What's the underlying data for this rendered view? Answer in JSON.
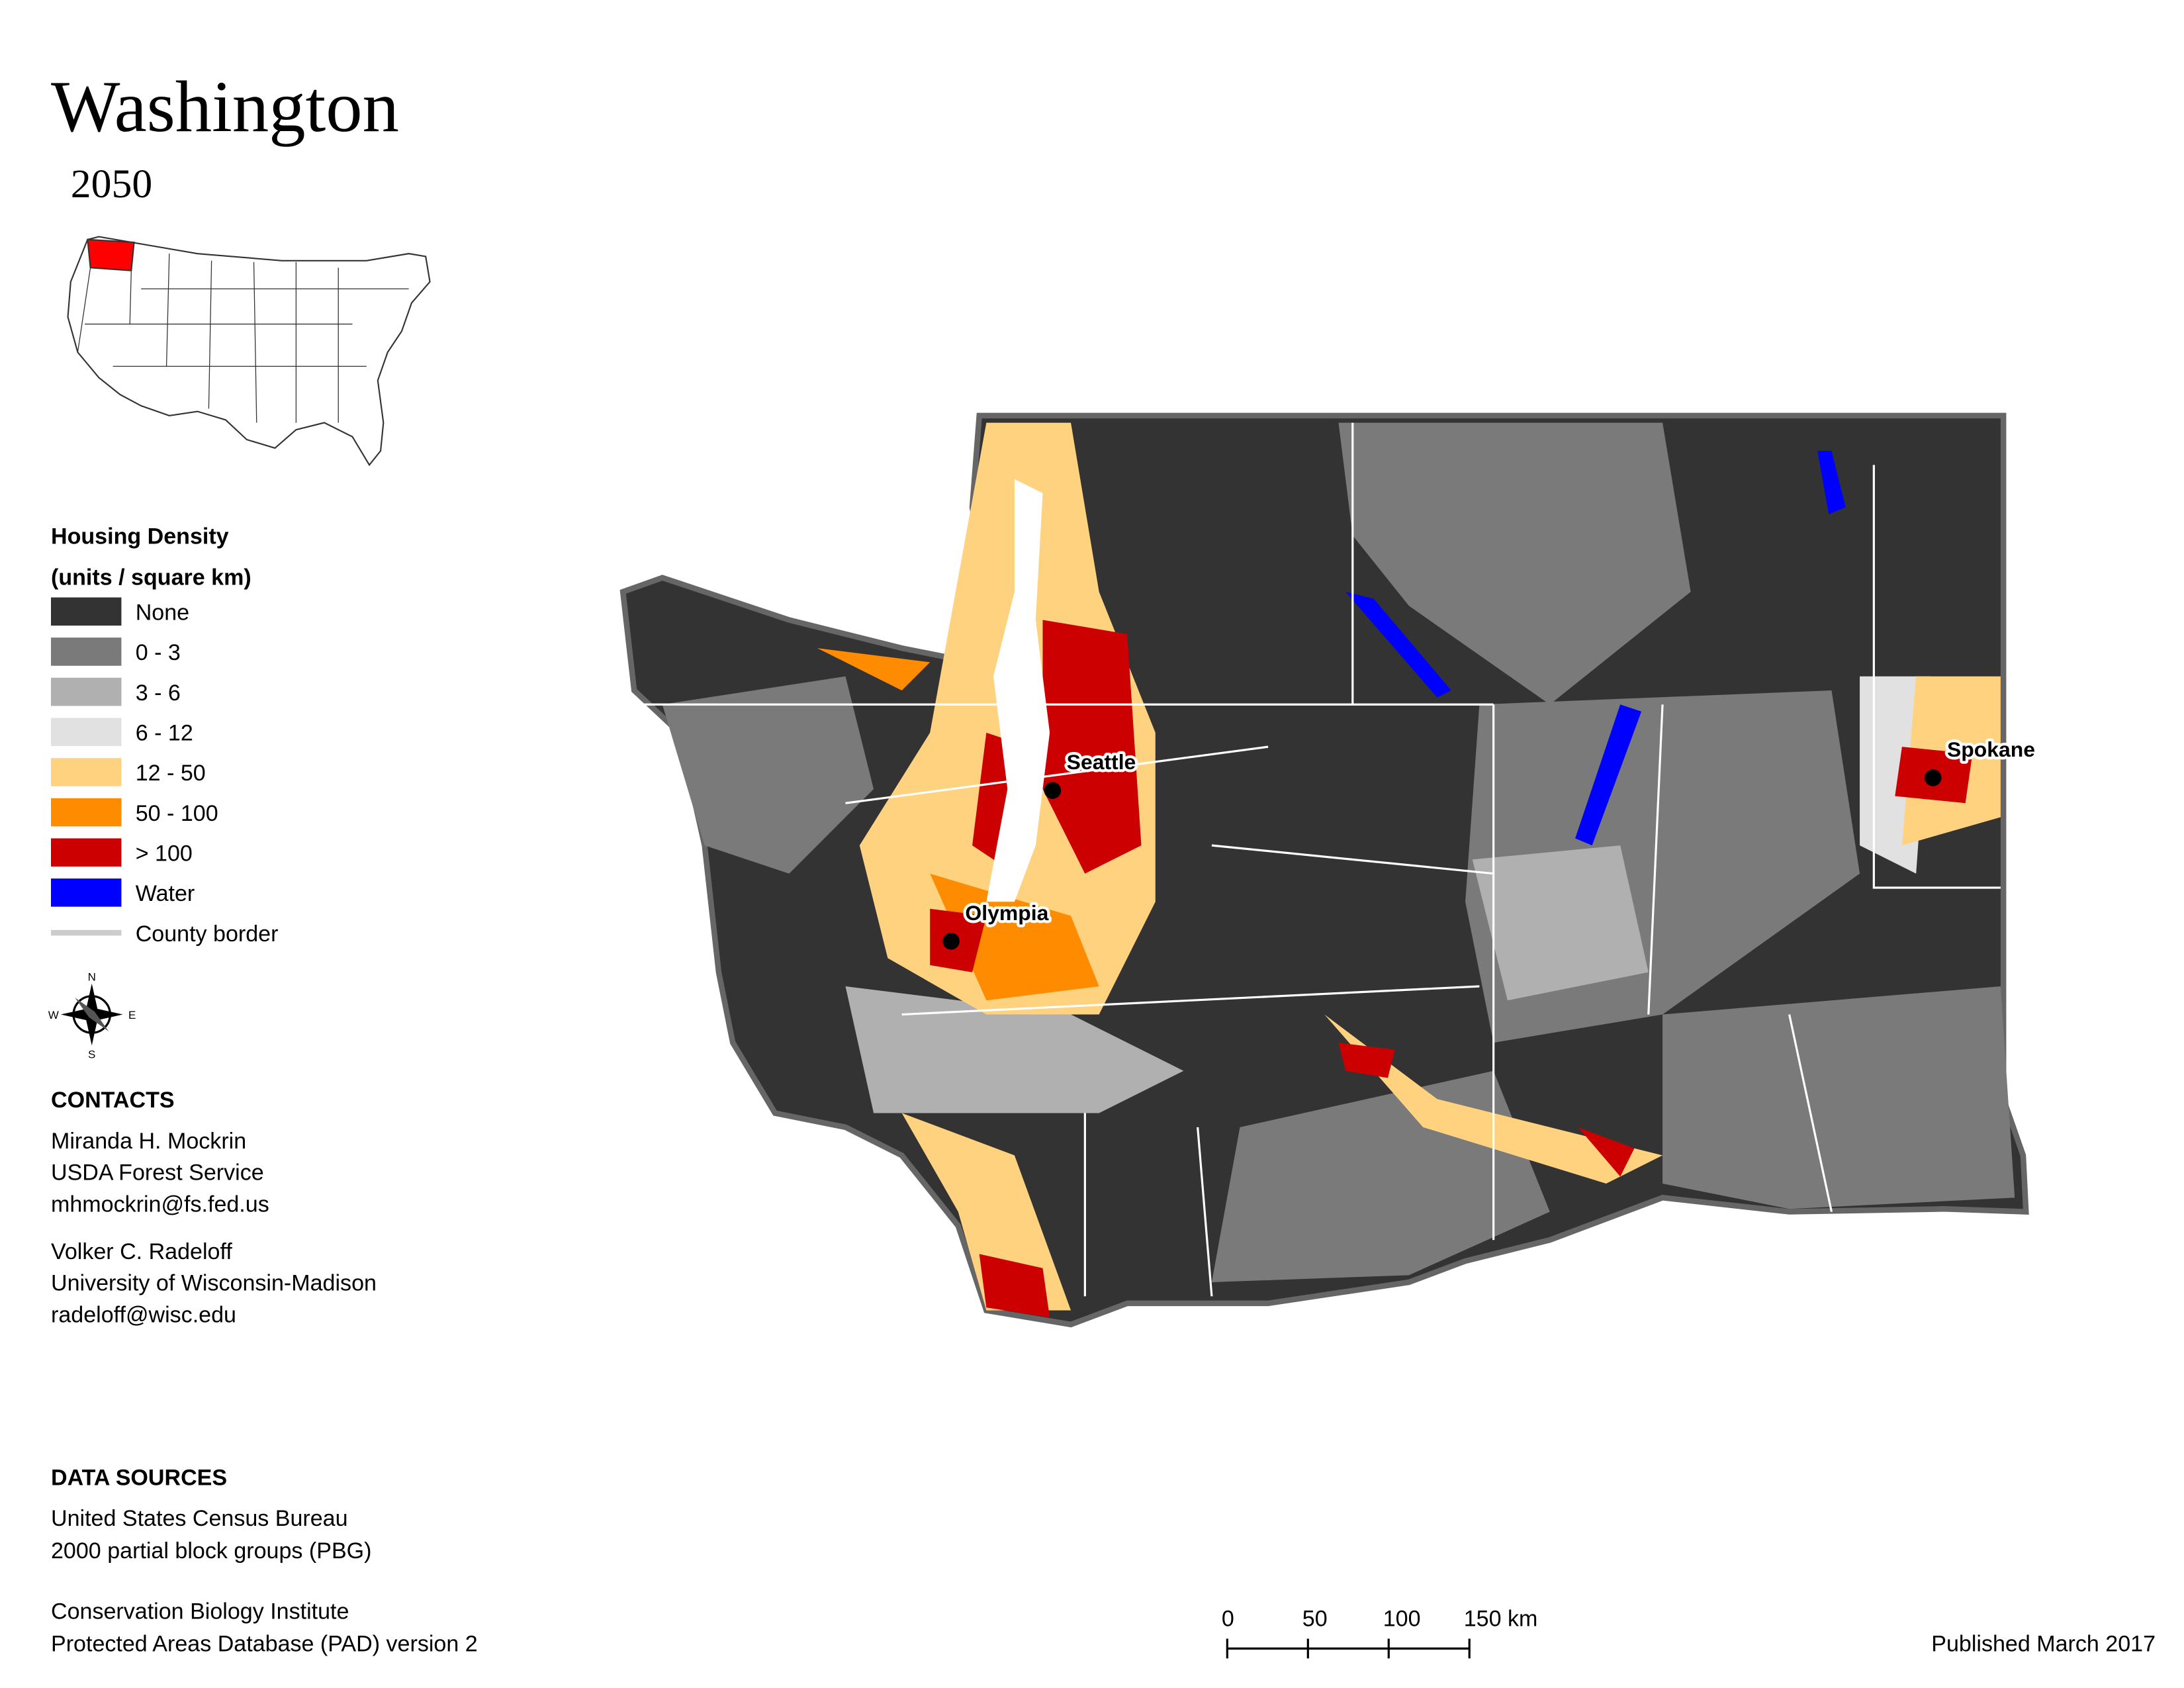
{
  "header": {
    "title": "Washington",
    "subtitle": "2050"
  },
  "legend": {
    "title": "Housing Density",
    "subtitle": "(units / square km)",
    "items": [
      {
        "label": "None",
        "color": "#333333"
      },
      {
        "label": "0 - 3",
        "color": "#7a7a7a"
      },
      {
        "label": "3 - 6",
        "color": "#b0b0b0"
      },
      {
        "label": "6 - 12",
        "color": "#e1e1e1"
      },
      {
        "label": "12 - 50",
        "color": "#ffd27f"
      },
      {
        "label": "50 - 100",
        "color": "#ff8c00"
      },
      {
        "label": "> 100",
        "color": "#cc0000"
      },
      {
        "label": "Water",
        "color": "#0000ff"
      },
      {
        "label": "County border",
        "color": "#cccccc"
      }
    ]
  },
  "compass": {
    "n": "N",
    "e": "E",
    "s": "S",
    "w": "W"
  },
  "map": {
    "cities": [
      {
        "name": "Seattle"
      },
      {
        "name": "Olympia"
      },
      {
        "name": "Spokane"
      }
    ]
  },
  "contacts": {
    "title": "CONTACTS",
    "people": [
      [
        "Miranda H. Mockrin",
        "USDA Forest Service",
        "mhmockrin@fs.fed.us"
      ],
      [
        "Volker C. Radeloff",
        "University of Wisconsin-Madison",
        "radeloff@wisc.edu"
      ]
    ]
  },
  "data_sources": {
    "title": "DATA SOURCES",
    "sources": [
      [
        "United States Census Bureau",
        "2000 partial block groups (PBG)"
      ],
      [
        "Conservation Biology Institute",
        "Protected Areas Database (PAD) version 2"
      ]
    ]
  },
  "scale_bar": {
    "labels": [
      "0",
      "50",
      "100",
      "150 km"
    ]
  },
  "footer": {
    "published": "Published March 2017"
  }
}
